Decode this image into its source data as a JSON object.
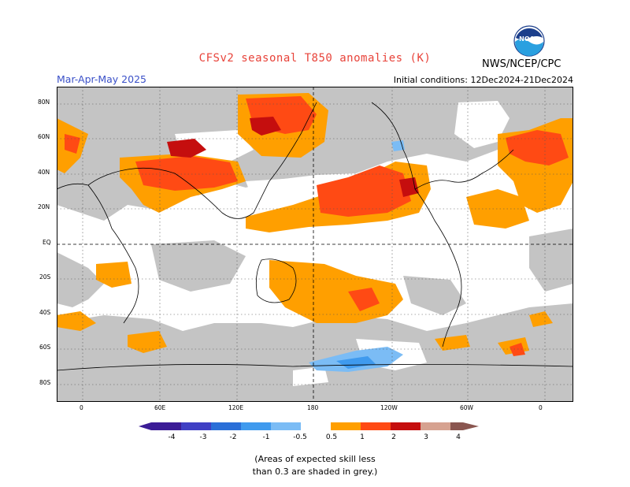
{
  "header": {
    "title": "CFSv2 seasonal T850 anomalies (K)",
    "season": "Mar-Apr-May 2025",
    "initial_conditions": "Initial conditions: 12Dec2024-21Dec2024",
    "organization": "NWS/NCEP/CPC",
    "logo_text": "NOAA"
  },
  "map": {
    "lat_labels": [
      "80N",
      "60N",
      "40N",
      "20N",
      "EQ",
      "20S",
      "40S",
      "60S",
      "80S"
    ],
    "lon_labels": [
      "0",
      "60E",
      "120E",
      "180",
      "120W",
      "60W",
      "0"
    ]
  },
  "legend": {
    "tick_labels": [
      "-4",
      "-3",
      "-2",
      "-1",
      "-0.5",
      "0.5",
      "1",
      "2",
      "3",
      "4"
    ],
    "colors": {
      "lt_m4": "#3b1c96",
      "m4_m3": "#3f3fc4",
      "m3_m2": "#2a6fd8",
      "m2_m1": "#3f9aee",
      "m1_m05": "#7bbcf5",
      "neutral": "#ffffff",
      "p05_p1": "#ff9f00",
      "p1_p2": "#ff4a14",
      "p2_p3": "#c50e0e",
      "p3_p4": "#d6a290",
      "gt_p4": "#8a5650"
    },
    "note_line1": "(Areas of expected skill less",
    "note_line2": "than 0.3 are shaded in grey.)"
  }
}
